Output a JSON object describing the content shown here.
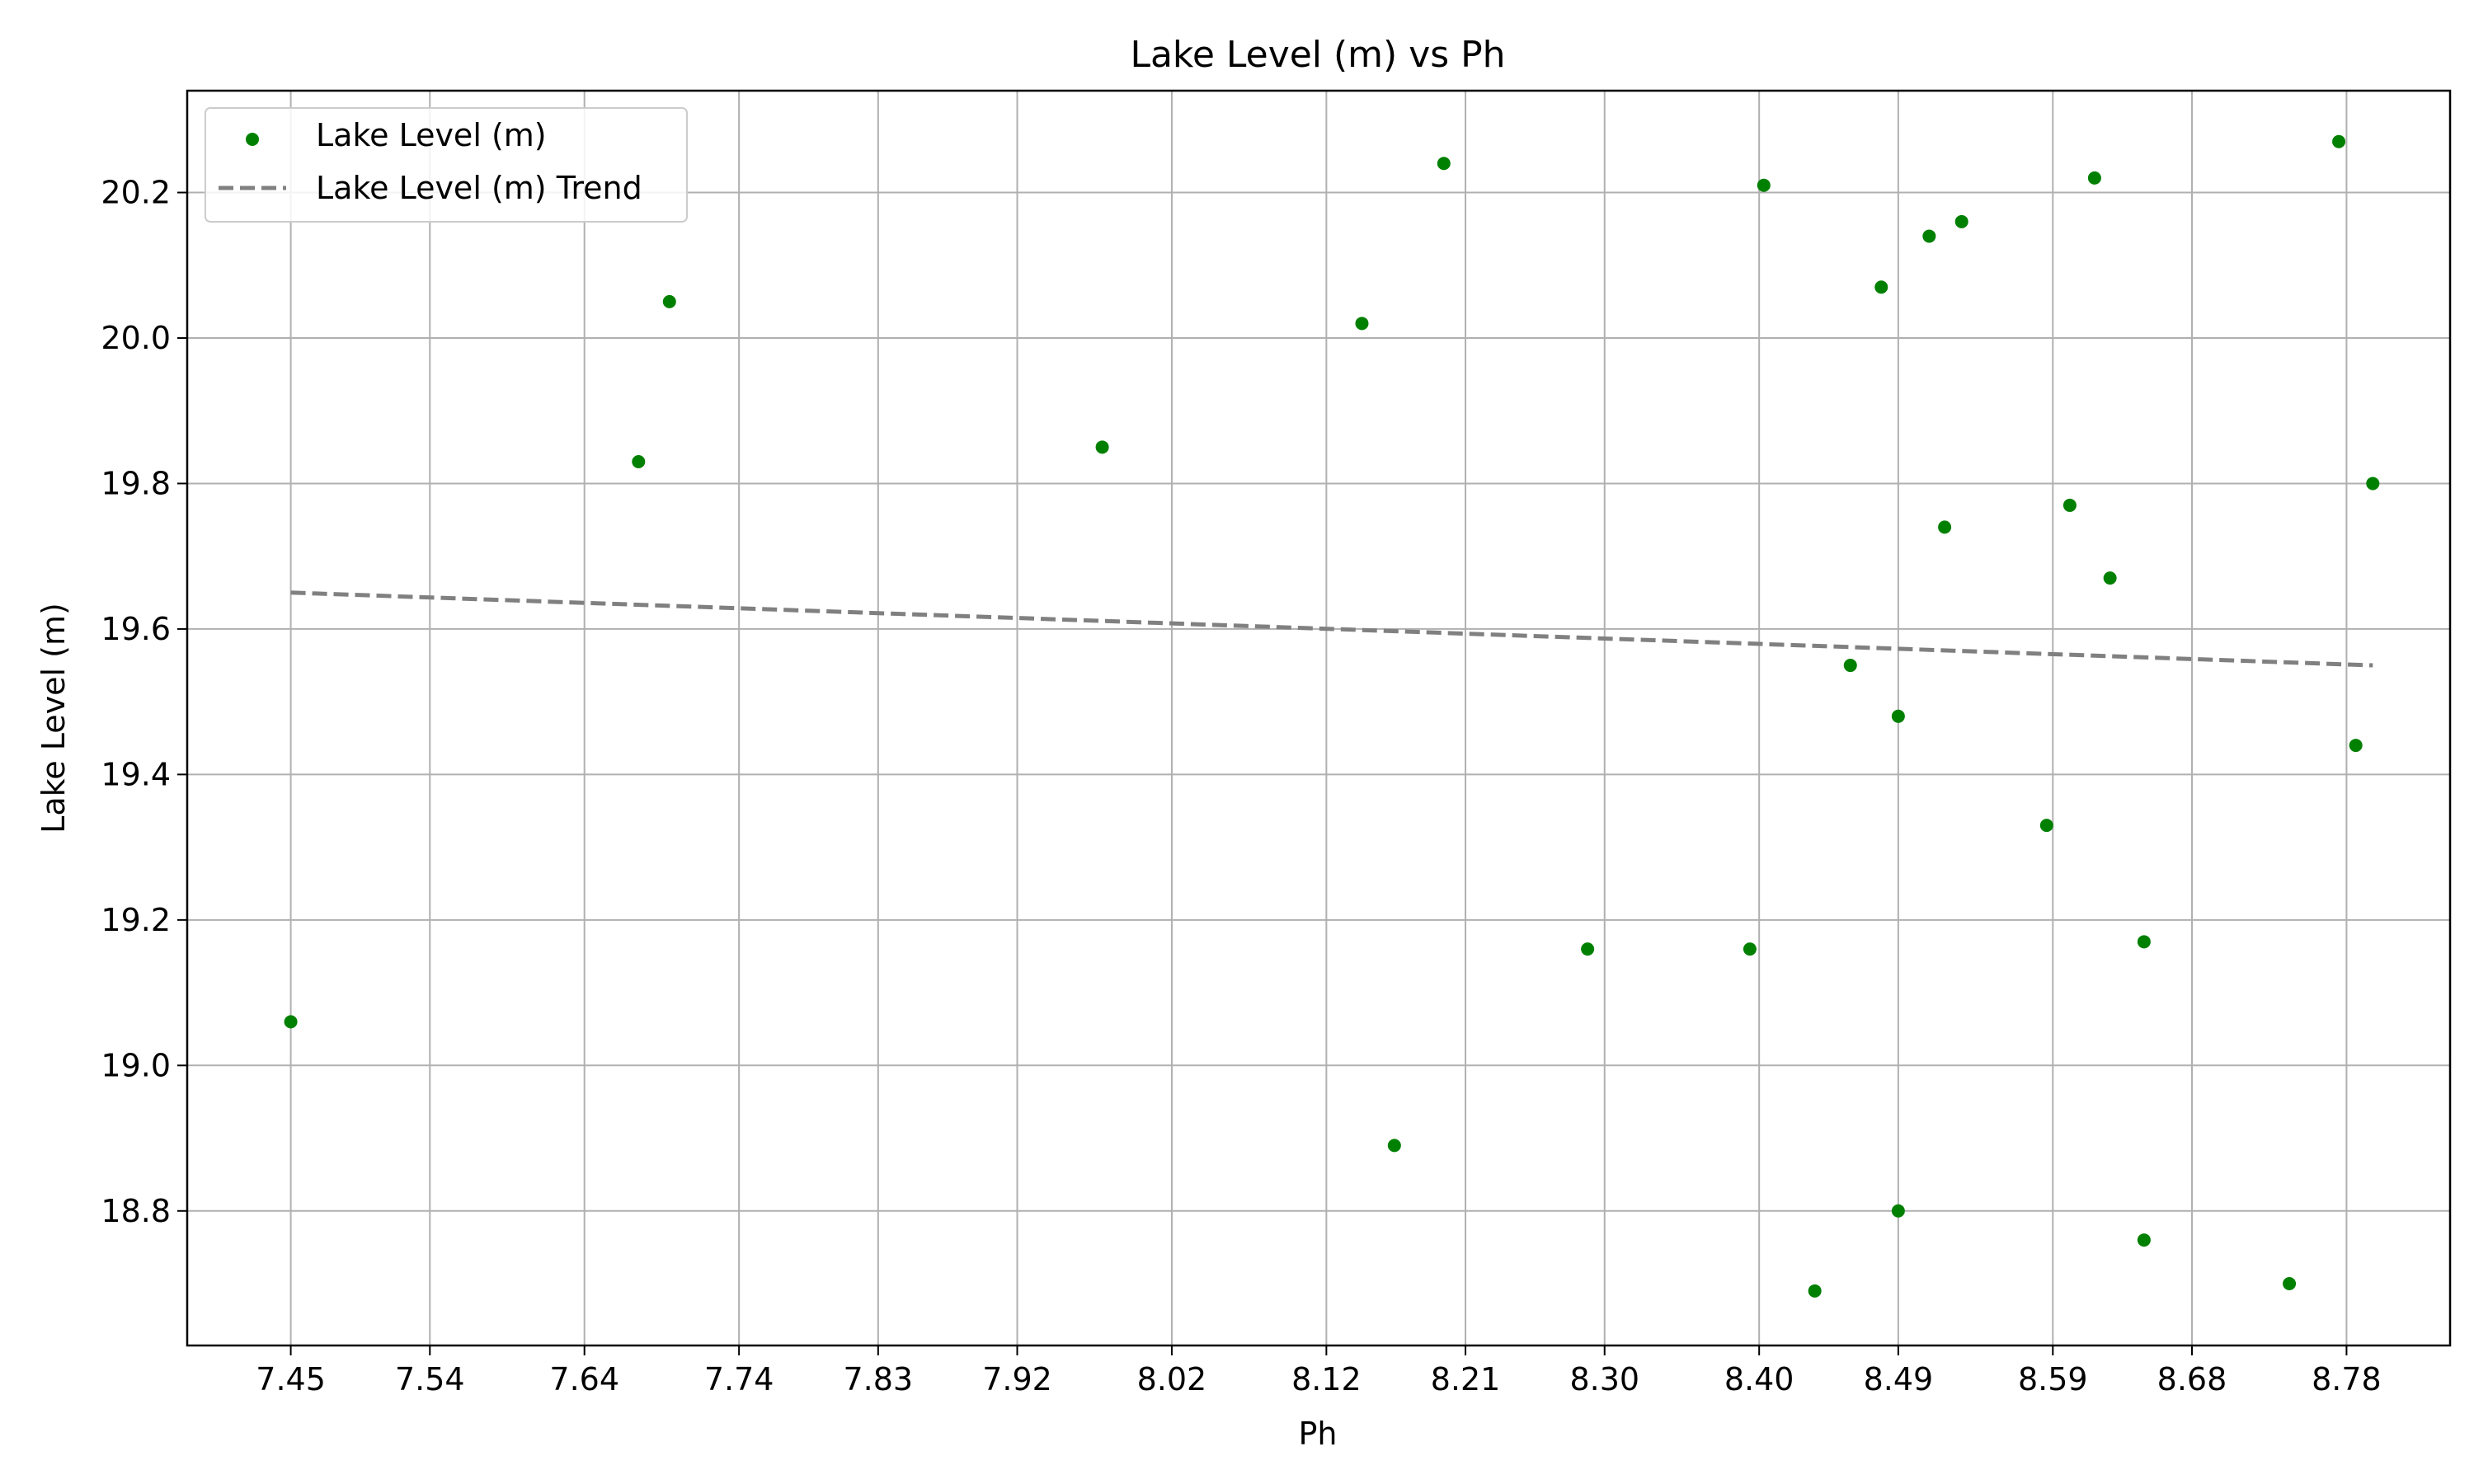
{
  "chart_data": {
    "type": "scatter",
    "title": "Lake Level (m) vs Ph",
    "xlabel": "Ph",
    "ylabel": "Lake Level (m)",
    "xlim": [
      7.383,
      8.847
    ],
    "ylim": [
      18.615,
      20.34
    ],
    "xticks": [
      7.45,
      7.54,
      7.64,
      7.74,
      7.83,
      7.92,
      8.02,
      8.12,
      8.21,
      8.3,
      8.4,
      8.49,
      8.59,
      8.68,
      8.78
    ],
    "xtick_labels": [
      "7.45",
      "7.54",
      "7.64",
      "7.74",
      "7.83",
      "7.92",
      "8.02",
      "8.12",
      "8.21",
      "8.30",
      "8.40",
      "8.49",
      "8.59",
      "8.68",
      "8.78"
    ],
    "yticks": [
      18.8,
      19.0,
      19.2,
      19.4,
      19.6,
      19.8,
      20.0,
      20.2
    ],
    "ytick_labels": [
      "18.8",
      "19.0",
      "19.2",
      "19.4",
      "19.6",
      "19.8",
      "20.0",
      "20.2"
    ],
    "grid": true,
    "legend_position": "top-left",
    "legend": [
      "Lake Level (m)",
      "Lake Level (m) Trend"
    ],
    "series": [
      {
        "name": "Lake Level (m)",
        "kind": "scatter",
        "color": "#008000",
        "points": [
          [
            7.45,
            19.06
          ],
          [
            7.675,
            19.83
          ],
          [
            7.695,
            20.05
          ],
          [
            7.975,
            19.85
          ],
          [
            8.143,
            20.02
          ],
          [
            8.164,
            18.89
          ],
          [
            8.196,
            20.24
          ],
          [
            8.289,
            19.16
          ],
          [
            8.394,
            19.16
          ],
          [
            8.403,
            20.21
          ],
          [
            8.436,
            18.69
          ],
          [
            8.459,
            19.55
          ],
          [
            8.479,
            20.07
          ],
          [
            8.49,
            19.48
          ],
          [
            8.49,
            18.8
          ],
          [
            8.51,
            20.14
          ],
          [
            8.52,
            19.74
          ],
          [
            8.531,
            20.16
          ],
          [
            8.586,
            19.33
          ],
          [
            8.601,
            19.77
          ],
          [
            8.617,
            20.22
          ],
          [
            8.627,
            19.67
          ],
          [
            8.649,
            19.17
          ],
          [
            8.649,
            18.76
          ],
          [
            8.743,
            18.7
          ],
          [
            8.775,
            20.27
          ],
          [
            8.786,
            19.44
          ],
          [
            8.797,
            19.8
          ]
        ]
      },
      {
        "name": "Lake Level (m) Trend",
        "kind": "line",
        "style": "dashed",
        "color": "#808080",
        "points": [
          [
            7.45,
            19.65
          ],
          [
            8.797,
            19.55
          ]
        ]
      }
    ]
  }
}
